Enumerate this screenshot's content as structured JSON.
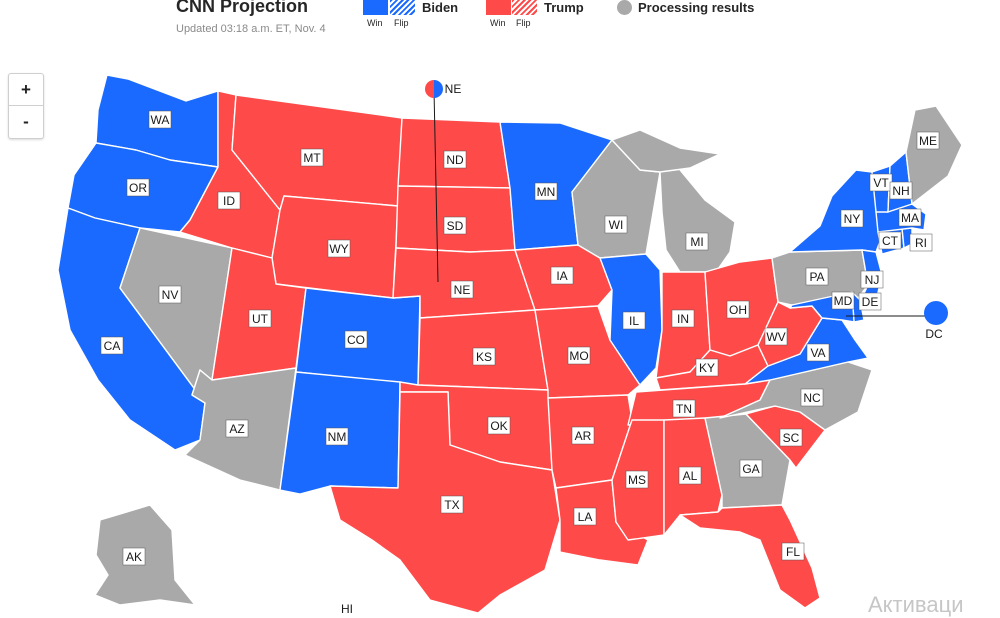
{
  "header": {
    "title": "CNN Projection",
    "updated": "Updated 03:18 a.m. ET, Nov. 4"
  },
  "legend": {
    "biden": {
      "label": "Biden",
      "win": "Win",
      "flip": "Flip",
      "color": "#1a6aff"
    },
    "trump": {
      "label": "Trump",
      "win": "Win",
      "flip": "Flip",
      "color": "#ff4a4a"
    },
    "processing": {
      "label": "Processing results",
      "color": "#a9a9a9"
    }
  },
  "zoom": {
    "in": "+",
    "out": "-"
  },
  "states": {
    "WA": "WA",
    "OR": "OR",
    "CA": "CA",
    "NV": "NV",
    "ID": "ID",
    "MT": "MT",
    "WY": "WY",
    "UT": "UT",
    "CO": "CO",
    "AZ": "AZ",
    "NM": "NM",
    "ND": "ND",
    "SD": "SD",
    "NE": "NE",
    "KS": "KS",
    "OK": "OK",
    "TX": "TX",
    "MN": "MN",
    "IA": "IA",
    "MO": "MO",
    "AR": "AR",
    "LA": "LA",
    "WI": "WI",
    "IL": "IL",
    "MI": "MI",
    "IN": "IN",
    "OH": "OH",
    "KY": "KY",
    "TN": "TN",
    "MS": "MS",
    "AL": "AL",
    "GA": "GA",
    "FL": "FL",
    "SC": "SC",
    "NC": "NC",
    "VA": "VA",
    "WV": "WV",
    "PA": "PA",
    "NY": "NY",
    "NJ": "NJ",
    "DE": "DE",
    "MD": "MD",
    "CT": "CT",
    "RI": "RI",
    "MA": "MA",
    "VT": "VT",
    "NH": "NH",
    "ME": "ME",
    "AK": "AK",
    "HI": "HI",
    "DC": "DC",
    "NE_CALLOUT": "NE"
  },
  "results": {
    "biden": [
      "WA",
      "OR",
      "CA",
      "CO",
      "NM",
      "MN",
      "IL",
      "VA",
      "NY",
      "NJ",
      "DE",
      "MD",
      "CT",
      "RI",
      "MA",
      "VT",
      "NH",
      "DC"
    ],
    "trump": [
      "ID",
      "MT",
      "WY",
      "UT",
      "ND",
      "SD",
      "NE",
      "KS",
      "OK",
      "TX",
      "IA",
      "MO",
      "AR",
      "LA",
      "IN",
      "OH",
      "KY",
      "TN",
      "MS",
      "AL",
      "FL",
      "SC",
      "WV"
    ],
    "processing": [
      "NV",
      "AZ",
      "WI",
      "MI",
      "GA",
      "NC",
      "PA",
      "ME",
      "AK"
    ]
  },
  "watermark": "Активаци"
}
